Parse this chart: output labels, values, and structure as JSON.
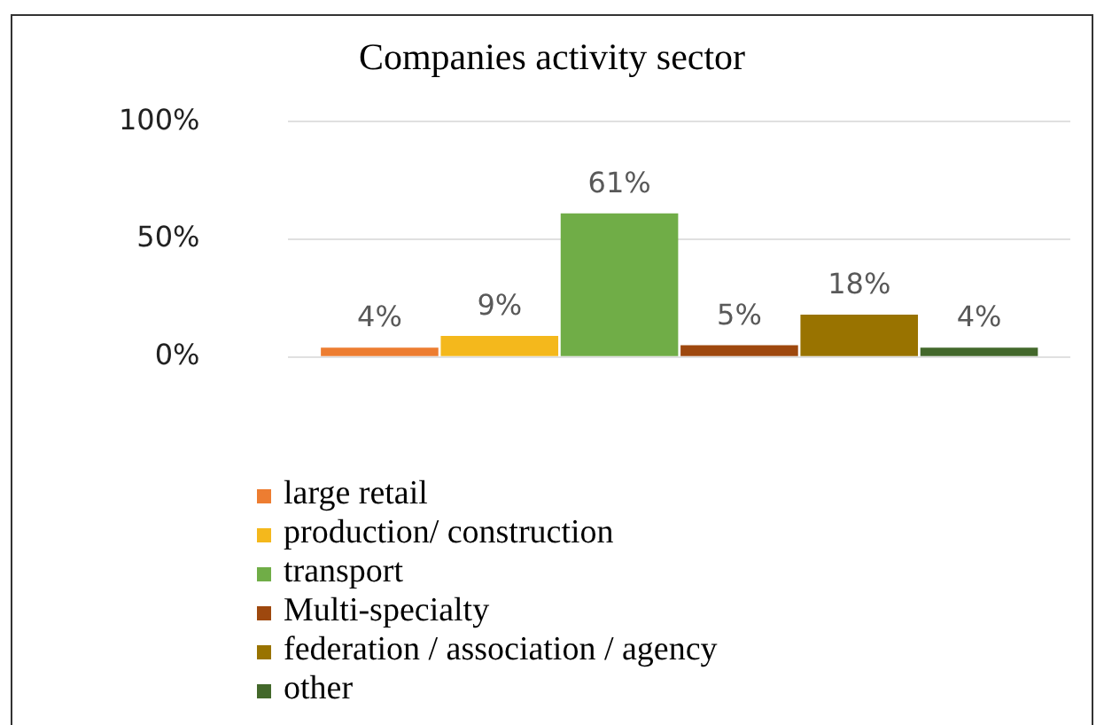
{
  "chart_data": {
    "type": "bar",
    "title": "Companies activity sector",
    "categories": [
      null
    ],
    "series": [
      {
        "name": "large retail",
        "color": "#ed7d31",
        "values": [
          4
        ],
        "value_labels": [
          "4%"
        ]
      },
      {
        "name": "production/ construction",
        "color": "#f4b81c",
        "values": [
          9
        ],
        "value_labels": [
          "9%"
        ]
      },
      {
        "name": "transport",
        "color": "#70ad47",
        "values": [
          61
        ],
        "value_labels": [
          "61%"
        ]
      },
      {
        "name": "Multi-specialty",
        "color": "#9e480e",
        "values": [
          5
        ],
        "value_labels": [
          "5%"
        ]
      },
      {
        "name": "federation / association / agency",
        "color": "#997300",
        "values": [
          18
        ],
        "value_labels": [
          "18%"
        ]
      },
      {
        "name": "other",
        "color": "#43682b",
        "values": [
          4
        ],
        "value_labels": [
          "4%"
        ]
      }
    ],
    "ylim": [
      0,
      100
    ],
    "yticks": [
      {
        "value": 0,
        "label": "0%"
      },
      {
        "value": 50,
        "label": "50%"
      },
      {
        "value": 100,
        "label": "100%"
      }
    ],
    "grid": "y",
    "legend": "bottom"
  }
}
